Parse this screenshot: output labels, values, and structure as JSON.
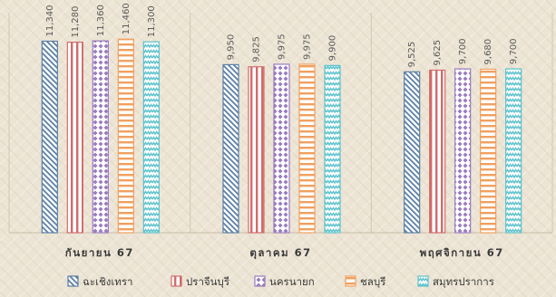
{
  "chart_data": {
    "type": "bar",
    "categories": [
      "กันยายน 67",
      "ตุลาคม 67",
      "พฤศจิกายน 67"
    ],
    "series": [
      {
        "name": "ฉะเชิงเทรา",
        "values": [
          11340,
          9950,
          9525
        ],
        "labels": [
          "11,340",
          "9,950",
          "9,525"
        ],
        "color": "#5b7fa6",
        "pattern": "diag"
      },
      {
        "name": "ปราจีนบุรี",
        "values": [
          11280,
          9825,
          9625
        ],
        "labels": [
          "11,280",
          "9,825",
          "9,625"
        ],
        "color": "#d36b6b",
        "pattern": "vert"
      },
      {
        "name": "นครนายก",
        "values": [
          11360,
          9975,
          9700
        ],
        "labels": [
          "11,360",
          "9,975",
          "9,700"
        ],
        "color": "#9a7bbf",
        "pattern": "dots"
      },
      {
        "name": "ชลบุรี",
        "values": [
          11460,
          9975,
          9680
        ],
        "labels": [
          "11,460",
          "9,975",
          "9,680"
        ],
        "color": "#f0a060",
        "pattern": "horiz"
      },
      {
        "name": "สมุทรปราการ",
        "values": [
          11300,
          9900,
          9700
        ],
        "labels": [
          "11,300",
          "9,900",
          "9,700"
        ],
        "color": "#5cc2cc",
        "pattern": "zigzag"
      }
    ],
    "ylim": [
      0,
      12600
    ],
    "legend_position": "bottom",
    "grid": false
  }
}
